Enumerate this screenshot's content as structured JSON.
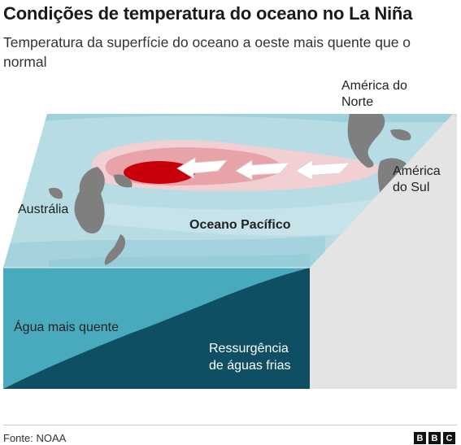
{
  "title": "Condições de temperatura do oceano no La Niña",
  "subtitle": "Temperatura da superfície do oceano a oeste mais quente que o normal",
  "labels": {
    "north_america": "América do Norte",
    "south_america": "América do Sul",
    "australia": "Austrália",
    "pacific": "Oceano Pacífico",
    "warm_water": "Água mais quente",
    "upwelling": "Ressurgência de águas frias"
  },
  "footer": {
    "source": "Fonte: NOAA",
    "brand_letters": [
      "B",
      "B",
      "C"
    ]
  },
  "colors": {
    "surface_base": "#b7dce4",
    "surface_cool": "#8ecbd7",
    "warm_light": "#f2cfd2",
    "warm_mid": "#e8a3a9",
    "warm_core": "#c8000b",
    "land": "#7f7f7f",
    "cross_section_warm": "#4aaabd",
    "cross_section_cold": "#0f4f63",
    "right_face": "#dcdcdc",
    "arrow": "#ffffff"
  }
}
